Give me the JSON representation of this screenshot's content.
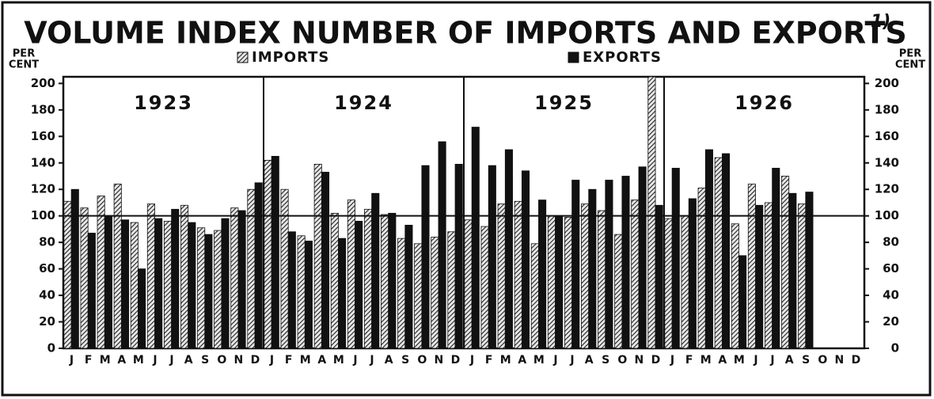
{
  "chart_data": {
    "type": "bar",
    "title": "VOLUME INDEX NUMBER OF IMPORTS AND EXPORTS",
    "footnote_marker": "1)",
    "y_label_lines": [
      "PER",
      "CENT"
    ],
    "annotations": [
      "1923",
      "1924",
      "1925",
      "1926"
    ],
    "categories": [
      "J",
      "F",
      "M",
      "A",
      "M",
      "J",
      "J",
      "A",
      "S",
      "O",
      "N",
      "D",
      "J",
      "F",
      "M",
      "A",
      "M",
      "J",
      "J",
      "A",
      "S",
      "O",
      "N",
      "D",
      "J",
      "F",
      "M",
      "A",
      "M",
      "J",
      "J",
      "A",
      "S",
      "O",
      "N",
      "D",
      "J",
      "F",
      "M",
      "A",
      "M",
      "J",
      "J",
      "A",
      "S",
      "O",
      "N",
      "D"
    ],
    "series": [
      {
        "name": "IMPORTS",
        "color": "#222222",
        "pattern": "hatch",
        "values": [
          111,
          106,
          115,
          124,
          95,
          109,
          96,
          108,
          91,
          89,
          106,
          120,
          142,
          120,
          85,
          139,
          102,
          112,
          105,
          101,
          83,
          79,
          84,
          88,
          97,
          92,
          109,
          111,
          79,
          100,
          99,
          109,
          104,
          86,
          112,
          205,
          98,
          100,
          121,
          144,
          94,
          124,
          110,
          130,
          109,
          null,
          null,
          null
        ]
      },
      {
        "name": "EXPORTS",
        "color": "#111111",
        "pattern": "solid",
        "values": [
          120,
          87,
          100,
          97,
          60,
          98,
          105,
          95,
          86,
          98,
          104,
          125,
          145,
          88,
          81,
          133,
          83,
          96,
          117,
          102,
          93,
          138,
          156,
          139,
          167,
          138,
          150,
          134,
          112,
          100,
          127,
          120,
          127,
          130,
          137,
          108,
          136,
          113,
          150,
          147,
          70,
          108,
          136,
          117,
          118,
          null,
          null,
          null
        ]
      }
    ],
    "ylim": [
      0,
      205
    ],
    "yticks": [
      0,
      20,
      40,
      60,
      80,
      100,
      120,
      140,
      160,
      180,
      200
    ],
    "reference_line": 100,
    "right_axis": true
  }
}
